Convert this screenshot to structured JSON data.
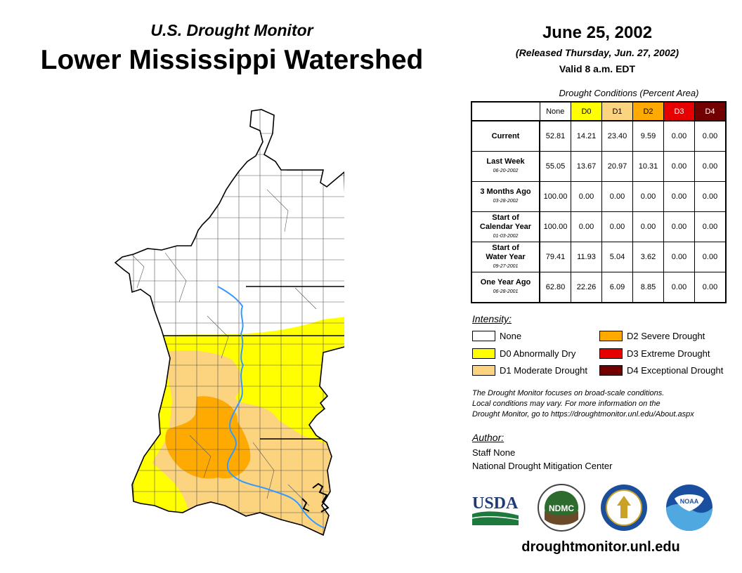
{
  "header": {
    "subtitle": "U.S. Drought Monitor",
    "title": "Lower Mississippi Watershed",
    "date": "June 25, 2002",
    "released": "(Released Thursday, Jun. 27, 2002)",
    "valid": "Valid 8 a.m. EDT"
  },
  "table": {
    "caption": "Drought Conditions (Percent Area)",
    "columns": [
      "None",
      "D0",
      "D1",
      "D2",
      "D3",
      "D4"
    ],
    "rows": [
      {
        "label": "Current",
        "label2": "",
        "date": "",
        "values": [
          "52.81",
          "14.21",
          "23.40",
          "9.59",
          "0.00",
          "0.00"
        ]
      },
      {
        "label": "Last Week",
        "label2": "",
        "date": "06-20-2002",
        "values": [
          "55.05",
          "13.67",
          "20.97",
          "10.31",
          "0.00",
          "0.00"
        ]
      },
      {
        "label": "3 Months Ago",
        "label2": "",
        "date": "03-28-2002",
        "values": [
          "100.00",
          "0.00",
          "0.00",
          "0.00",
          "0.00",
          "0.00"
        ]
      },
      {
        "label": "Start of",
        "label2": "Calendar Year",
        "date": "01-03-2002",
        "values": [
          "100.00",
          "0.00",
          "0.00",
          "0.00",
          "0.00",
          "0.00"
        ]
      },
      {
        "label": "Start of",
        "label2": "Water Year",
        "date": "09-27-2001",
        "values": [
          "79.41",
          "11.93",
          "5.04",
          "3.62",
          "0.00",
          "0.00"
        ]
      },
      {
        "label": "One Year Ago",
        "label2": "",
        "date": "06-28-2001",
        "values": [
          "62.80",
          "22.26",
          "6.09",
          "8.85",
          "0.00",
          "0.00"
        ]
      }
    ]
  },
  "colors": {
    "none": "#ffffff",
    "d0": "#ffff00",
    "d1": "#fcd37f",
    "d2": "#ffaa00",
    "d3": "#e60000",
    "d4": "#730000",
    "river": "#3399ff"
  },
  "legend": {
    "title": "Intensity:",
    "items": [
      {
        "label": "None"
      },
      {
        "label": "D0 Abnormally Dry"
      },
      {
        "label": "D1 Moderate Drought"
      },
      {
        "label": "D2 Severe Drought"
      },
      {
        "label": "D3 Extreme Drought"
      },
      {
        "label": "D4 Exceptional Drought"
      }
    ]
  },
  "note": {
    "line1": "The Drought Monitor focuses on broad-scale conditions.",
    "line2": "Local conditions may vary. For more information on the",
    "line3": "Drought Monitor, go to https://droughtmonitor.unl.edu/About.aspx"
  },
  "author": {
    "title": "Author:",
    "name": "Staff None",
    "org": "National Drought Mitigation Center"
  },
  "logos": {
    "usda": "USDA",
    "ndmc": "NDMC",
    "noaa": "NOAA"
  },
  "footer": {
    "website": "droughtmonitor.unl.edu"
  }
}
